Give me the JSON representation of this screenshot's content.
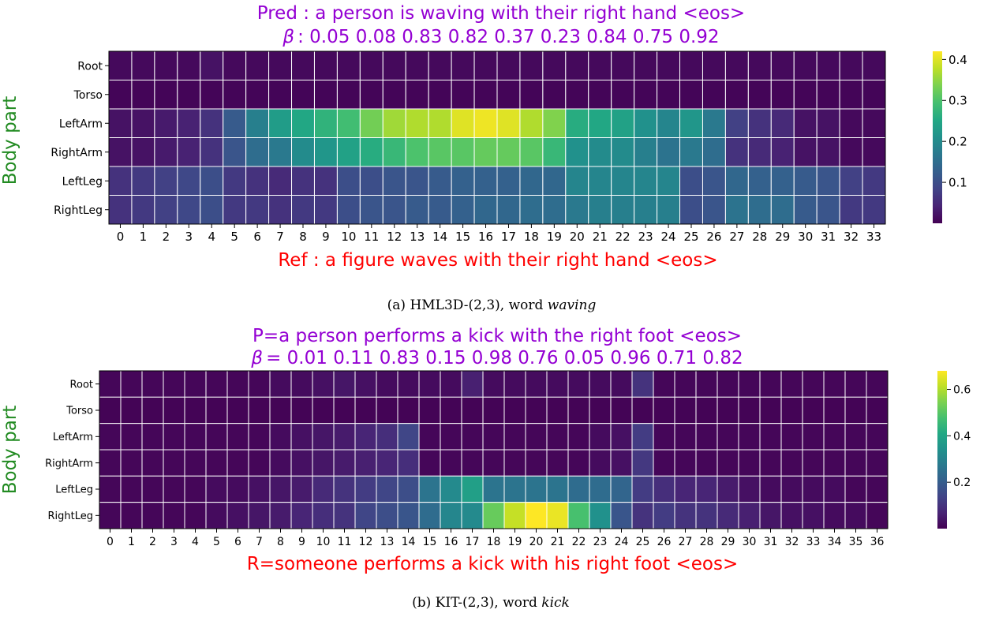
{
  "colors": {
    "pred_title": "#9400d3",
    "ref_title": "#ff0000",
    "ylabel": "#228b22",
    "grid": "#ffffff",
    "colormap": "viridis"
  },
  "chart_data": [
    {
      "type": "heatmap",
      "title": "Pred : a person is waving with their right hand <eos>",
      "subtitle_symbol": "β",
      "subtitle_values": ": 0.05 0.08 0.83 0.82 0.37 0.23 0.84 0.75 0.92",
      "xlabel": "Ref :  a figure waves with their right hand <eos>",
      "ylabel": "Body part",
      "rows": [
        "Root",
        "Torso",
        "LeftArm",
        "RightArm",
        "LeftLeg",
        "RightLeg"
      ],
      "columns": [
        "0",
        "1",
        "2",
        "3",
        "4",
        "5",
        "6",
        "7",
        "8",
        "9",
        "10",
        "11",
        "12",
        "13",
        "14",
        "15",
        "16",
        "17",
        "18",
        "19",
        "20",
        "21",
        "22",
        "23",
        "24",
        "25",
        "26",
        "27",
        "28",
        "29",
        "30",
        "31",
        "32",
        "33"
      ],
      "values": [
        [
          0.01,
          0.01,
          0.01,
          0.01,
          0.02,
          0.01,
          0.01,
          0.01,
          0.01,
          0.01,
          0.01,
          0.01,
          0.01,
          0.01,
          0.01,
          0.01,
          0.01,
          0.01,
          0.01,
          0.01,
          0.01,
          0.01,
          0.01,
          0.01,
          0.01,
          0.01,
          0.01,
          0.01,
          0.01,
          0.01,
          0.01,
          0.01,
          0.01,
          0.01
        ],
        [
          0.005,
          0.005,
          0.005,
          0.005,
          0.005,
          0.005,
          0.005,
          0.005,
          0.005,
          0.005,
          0.005,
          0.005,
          0.005,
          0.005,
          0.005,
          0.005,
          0.005,
          0.005,
          0.005,
          0.005,
          0.005,
          0.005,
          0.005,
          0.005,
          0.005,
          0.005,
          0.005,
          0.005,
          0.005,
          0.005,
          0.005,
          0.005,
          0.005,
          0.005
        ],
        [
          0.02,
          0.02,
          0.03,
          0.04,
          0.06,
          0.12,
          0.18,
          0.23,
          0.25,
          0.27,
          0.29,
          0.33,
          0.36,
          0.37,
          0.37,
          0.4,
          0.41,
          0.4,
          0.37,
          0.34,
          0.26,
          0.25,
          0.24,
          0.21,
          0.19,
          0.22,
          0.17,
          0.08,
          0.06,
          0.05,
          0.02,
          0.02,
          0.01,
          0.01
        ],
        [
          0.02,
          0.02,
          0.03,
          0.04,
          0.06,
          0.11,
          0.15,
          0.17,
          0.2,
          0.22,
          0.24,
          0.26,
          0.28,
          0.3,
          0.31,
          0.31,
          0.32,
          0.32,
          0.31,
          0.28,
          0.21,
          0.2,
          0.2,
          0.18,
          0.16,
          0.17,
          0.15,
          0.06,
          0.05,
          0.04,
          0.02,
          0.02,
          0.01,
          0.01
        ],
        [
          0.06,
          0.07,
          0.08,
          0.09,
          0.1,
          0.07,
          0.06,
          0.05,
          0.06,
          0.06,
          0.1,
          0.1,
          0.11,
          0.11,
          0.12,
          0.13,
          0.13,
          0.13,
          0.14,
          0.14,
          0.19,
          0.19,
          0.19,
          0.19,
          0.19,
          0.1,
          0.11,
          0.14,
          0.13,
          0.13,
          0.12,
          0.11,
          0.08,
          0.07
        ],
        [
          0.06,
          0.07,
          0.08,
          0.09,
          0.1,
          0.07,
          0.07,
          0.06,
          0.07,
          0.07,
          0.1,
          0.11,
          0.11,
          0.12,
          0.12,
          0.13,
          0.14,
          0.14,
          0.15,
          0.15,
          0.17,
          0.18,
          0.18,
          0.18,
          0.18,
          0.1,
          0.11,
          0.16,
          0.15,
          0.15,
          0.12,
          0.11,
          0.07,
          0.07
        ]
      ],
      "colorbar": {
        "min": 0.0,
        "max": 0.42,
        "ticks": [
          0.1,
          0.2,
          0.3,
          0.4
        ]
      },
      "caption_prefix": "(a) HML3D-(2,3), word ",
      "caption_word": "waving"
    },
    {
      "type": "heatmap",
      "title": "P=a person performs a kick with the right foot <eos>",
      "subtitle_symbol": "β",
      "subtitle_values": "= 0.01 0.11 0.83 0.15 0.98 0.76 0.05 0.96 0.71 0.82",
      "xlabel": "R=someone performs a kick with his right foot <eos>",
      "ylabel": "Body part",
      "rows": [
        "Root",
        "Torso",
        "LeftArm",
        "RightArm",
        "LeftLeg",
        "RightLeg"
      ],
      "columns": [
        "0",
        "1",
        "2",
        "3",
        "4",
        "5",
        "6",
        "7",
        "8",
        "9",
        "10",
        "11",
        "12",
        "13",
        "14",
        "15",
        "16",
        "17",
        "18",
        "19",
        "20",
        "21",
        "22",
        "23",
        "24",
        "25",
        "26",
        "27",
        "28",
        "29",
        "30",
        "31",
        "32",
        "33",
        "34",
        "35",
        "36"
      ],
      "values": [
        [
          0.01,
          0.01,
          0.01,
          0.01,
          0.01,
          0.01,
          0.01,
          0.01,
          0.02,
          0.02,
          0.03,
          0.04,
          0.03,
          0.02,
          0.02,
          0.02,
          0.02,
          0.06,
          0.02,
          0.02,
          0.02,
          0.02,
          0.02,
          0.02,
          0.02,
          0.1,
          0.01,
          0.01,
          0.01,
          0.01,
          0.01,
          0.01,
          0.01,
          0.01,
          0.01,
          0.01,
          0.01
        ],
        [
          0.005,
          0.005,
          0.005,
          0.005,
          0.005,
          0.005,
          0.005,
          0.005,
          0.005,
          0.005,
          0.005,
          0.005,
          0.005,
          0.005,
          0.005,
          0.005,
          0.005,
          0.005,
          0.005,
          0.005,
          0.005,
          0.005,
          0.005,
          0.005,
          0.005,
          0.005,
          0.005,
          0.005,
          0.005,
          0.005,
          0.005,
          0.005,
          0.005,
          0.005,
          0.005,
          0.005,
          0.005
        ],
        [
          0.01,
          0.01,
          0.01,
          0.01,
          0.01,
          0.01,
          0.01,
          0.01,
          0.02,
          0.03,
          0.04,
          0.05,
          0.07,
          0.09,
          0.14,
          0.01,
          0.01,
          0.01,
          0.01,
          0.01,
          0.01,
          0.01,
          0.01,
          0.02,
          0.03,
          0.12,
          0.01,
          0.01,
          0.01,
          0.01,
          0.01,
          0.01,
          0.01,
          0.01,
          0.01,
          0.01,
          0.01
        ],
        [
          0.01,
          0.01,
          0.01,
          0.01,
          0.01,
          0.01,
          0.01,
          0.01,
          0.02,
          0.03,
          0.04,
          0.05,
          0.06,
          0.07,
          0.09,
          0.01,
          0.01,
          0.01,
          0.01,
          0.01,
          0.01,
          0.01,
          0.01,
          0.02,
          0.03,
          0.11,
          0.01,
          0.01,
          0.01,
          0.01,
          0.01,
          0.01,
          0.01,
          0.01,
          0.01,
          0.01,
          0.01
        ],
        [
          0.01,
          0.01,
          0.01,
          0.01,
          0.01,
          0.02,
          0.02,
          0.03,
          0.04,
          0.05,
          0.08,
          0.1,
          0.12,
          0.14,
          0.16,
          0.26,
          0.32,
          0.38,
          0.26,
          0.26,
          0.26,
          0.26,
          0.24,
          0.24,
          0.22,
          0.12,
          0.09,
          0.07,
          0.07,
          0.05,
          0.03,
          0.02,
          0.02,
          0.02,
          0.02,
          0.01,
          0.01
        ],
        [
          0.01,
          0.01,
          0.01,
          0.01,
          0.01,
          0.02,
          0.03,
          0.04,
          0.05,
          0.07,
          0.09,
          0.1,
          0.14,
          0.16,
          0.18,
          0.24,
          0.31,
          0.32,
          0.52,
          0.62,
          0.68,
          0.66,
          0.48,
          0.34,
          0.18,
          0.1,
          0.12,
          0.1,
          0.1,
          0.08,
          0.06,
          0.04,
          0.03,
          0.03,
          0.02,
          0.02,
          0.01
        ]
      ],
      "colorbar": {
        "min": 0.0,
        "max": 0.68,
        "ticks": [
          0.2,
          0.4,
          0.6
        ]
      },
      "caption_prefix": "(b) KIT-(2,3), word ",
      "caption_word": "kick"
    }
  ]
}
